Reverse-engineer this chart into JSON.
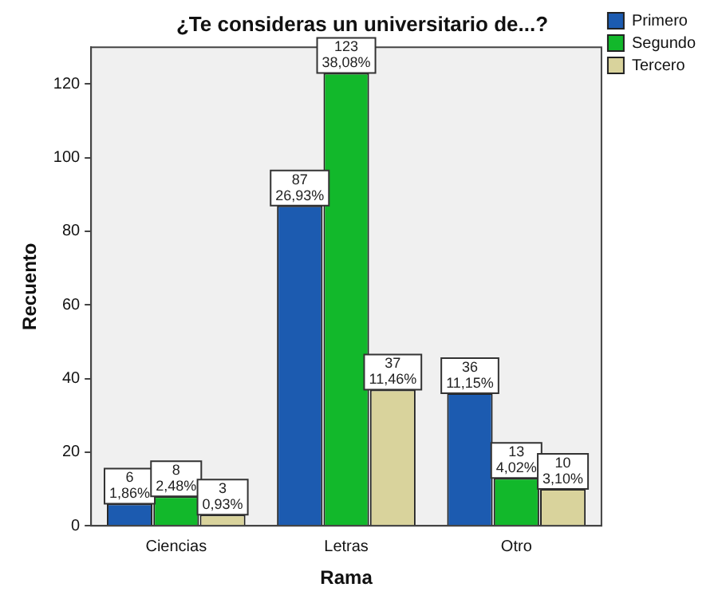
{
  "chart_data": {
    "type": "bar",
    "title": "¿Te consideras un universitario de...?",
    "xlabel": "Rama",
    "ylabel": "Recuento",
    "categories": [
      "Ciencias",
      "Letras",
      "Otro"
    ],
    "series": [
      {
        "name": "Primero",
        "color": "#1c5bb0",
        "values": [
          6,
          87,
          36
        ],
        "value_labels": [
          "6\n1,86%",
          "87\n26,93%",
          "36\n11,15%"
        ]
      },
      {
        "name": "Segundo",
        "color": "#12b82b",
        "values": [
          8,
          123,
          13
        ],
        "value_labels": [
          "8\n2,48%",
          "123\n38,08%",
          "13\n4,02%"
        ]
      },
      {
        "name": "Tercero",
        "color": "#d9d39c",
        "values": [
          3,
          37,
          10
        ],
        "value_labels": [
          "3\n0,93%",
          "37\n11,46%",
          "10\n3,10%"
        ]
      }
    ],
    "ylim": [
      0,
      130
    ],
    "yticks": [
      0,
      20,
      40,
      60,
      80,
      100,
      120
    ],
    "grid": false,
    "legend": "top right"
  }
}
